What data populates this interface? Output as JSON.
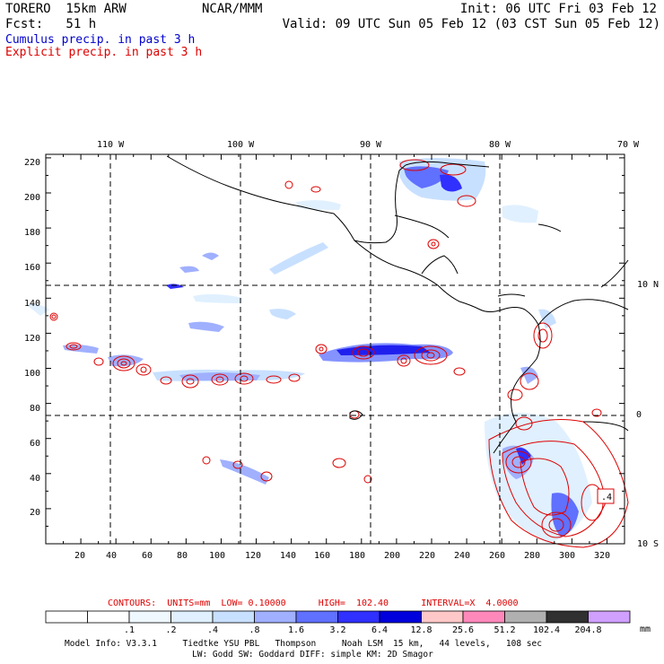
{
  "header": {
    "model": "TORERO  15km ARW",
    "center": "NCAR/MMM",
    "init": "Init: 06 UTC Fri 03 Feb 12",
    "fcst": "Fcst:   51 h",
    "valid": "Valid: 09 UTC Sun 05 Feb 12 (03 CST Sun 05 Feb 12)",
    "legend_cumulus": "Cumulus precip. in past 3 h",
    "legend_explicit": "Explicit precip. in past 3 h"
  },
  "colors": {
    "cumulus": "#0000cc",
    "explicit": "#dd0000",
    "border": "#000000"
  },
  "map": {
    "lon_labels": [
      "110 W",
      "100 W",
      "90 W",
      "80 W",
      "70 W"
    ],
    "lat_labels": [
      "10 N",
      "0",
      "10 S"
    ],
    "x_ticks": [
      "20",
      "40",
      "60",
      "80",
      "100",
      "120",
      "140",
      "160",
      "180",
      "200",
      "220",
      "240",
      "260",
      "280",
      "300",
      "320"
    ],
    "y_ticks": [
      "220",
      "200",
      "180",
      "160",
      "140",
      "120",
      "100",
      "80",
      "60",
      "40",
      "20"
    ],
    "box_label": ".4"
  },
  "contour_info": {
    "label": "CONTOURS:  UNITS=mm  LOW= 0.10000      HIGH=  102.40      INTERVAL=X  4.0000"
  },
  "colorbar": {
    "levels": [
      ".1",
      ".2",
      ".4",
      ".8",
      "1.6",
      "3.2",
      "6.4",
      "12.8",
      "25.6",
      "51.2",
      "102.4",
      "204.8"
    ],
    "units": "mm",
    "colors": [
      "#ffffff",
      "#ffffff",
      "#f0f8ff",
      "#e0f0ff",
      "#c8e0ff",
      "#a0b0ff",
      "#6070ff",
      "#3030ff",
      "#0000dd",
      "#ffc8c8",
      "#ff88bb",
      "#b0b0b0",
      "#303030",
      "#d0a0ff"
    ]
  },
  "footer": {
    "line1": "Model Info: V3.3.1     Tiedtke YSU PBL   Thompson     Noah LSM  15 km,   44 levels,   108 sec",
    "line2": "LW: Godd SW: Goddard DIFF: simple KM: 2D Smagor"
  }
}
